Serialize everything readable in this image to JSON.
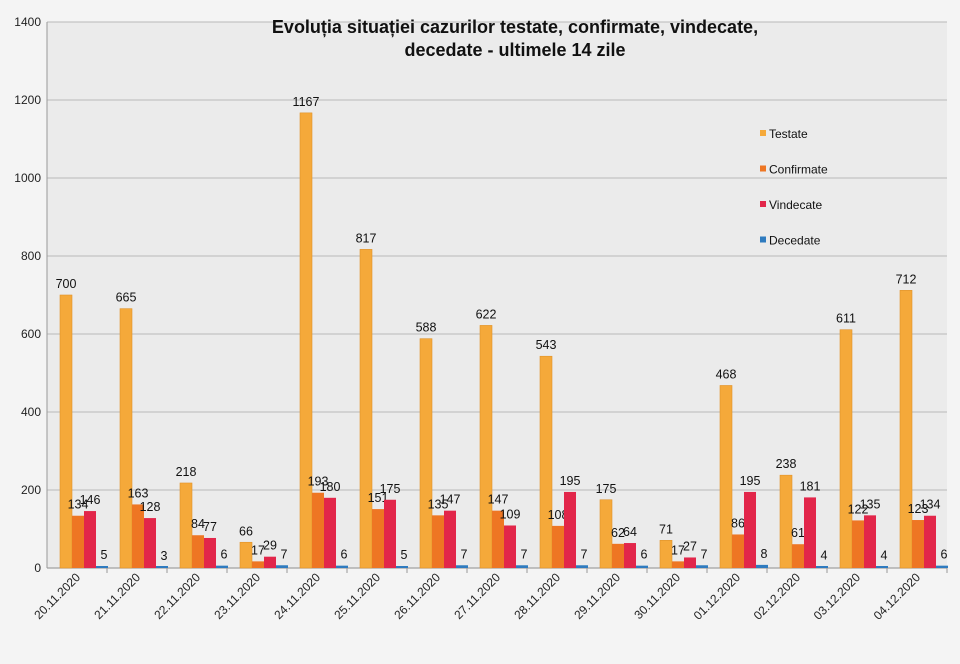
{
  "chart_data": {
    "type": "bar",
    "title": "Evoluția situației cazurilor testate, confirmate, vindecate, decedate -  ultimele 14 zile",
    "title_lines": [
      "Evoluția situației cazurilor testate, confirmate, vindecate,",
      "decedate -  ultimele 14 zile"
    ],
    "categories": [
      "20.11.2020",
      "21.11.2020",
      "22.11.2020",
      "23.11.2020",
      "24.11.2020",
      "25.11.2020",
      "26.11.2020",
      "27.11.2020",
      "28.11.2020",
      "29.11.2020",
      "30.11.2020",
      "01.12.2020",
      "02.12.2020",
      "03.12.2020",
      "04.12.2020"
    ],
    "series": [
      {
        "name": "Testate",
        "color": "#f5a93a",
        "values": [
          700,
          665,
          218,
          66,
          1167,
          817,
          588,
          622,
          543,
          175,
          71,
          468,
          238,
          611,
          712
        ]
      },
      {
        "name": "Confirmate",
        "color": "#ee7623",
        "values": [
          134,
          163,
          84,
          17,
          193,
          151,
          135,
          147,
          108,
          62,
          17,
          86,
          61,
          122,
          123
        ]
      },
      {
        "name": "Vindecate",
        "color": "#e2264a",
        "values": [
          146,
          128,
          77,
          29,
          180,
          175,
          147,
          109,
          195,
          64,
          27,
          195,
          181,
          135,
          134
        ]
      },
      {
        "name": "Decedate",
        "color": "#2f7bbf",
        "values": [
          5,
          3,
          6,
          7,
          6,
          5,
          7,
          7,
          7,
          6,
          7,
          8,
          4,
          4,
          6
        ]
      }
    ],
    "ylim": [
      0,
      1400
    ],
    "yticks": [
      0,
      200,
      400,
      600,
      800,
      1000,
      1200,
      1400
    ],
    "grid": true,
    "legend": "right"
  }
}
